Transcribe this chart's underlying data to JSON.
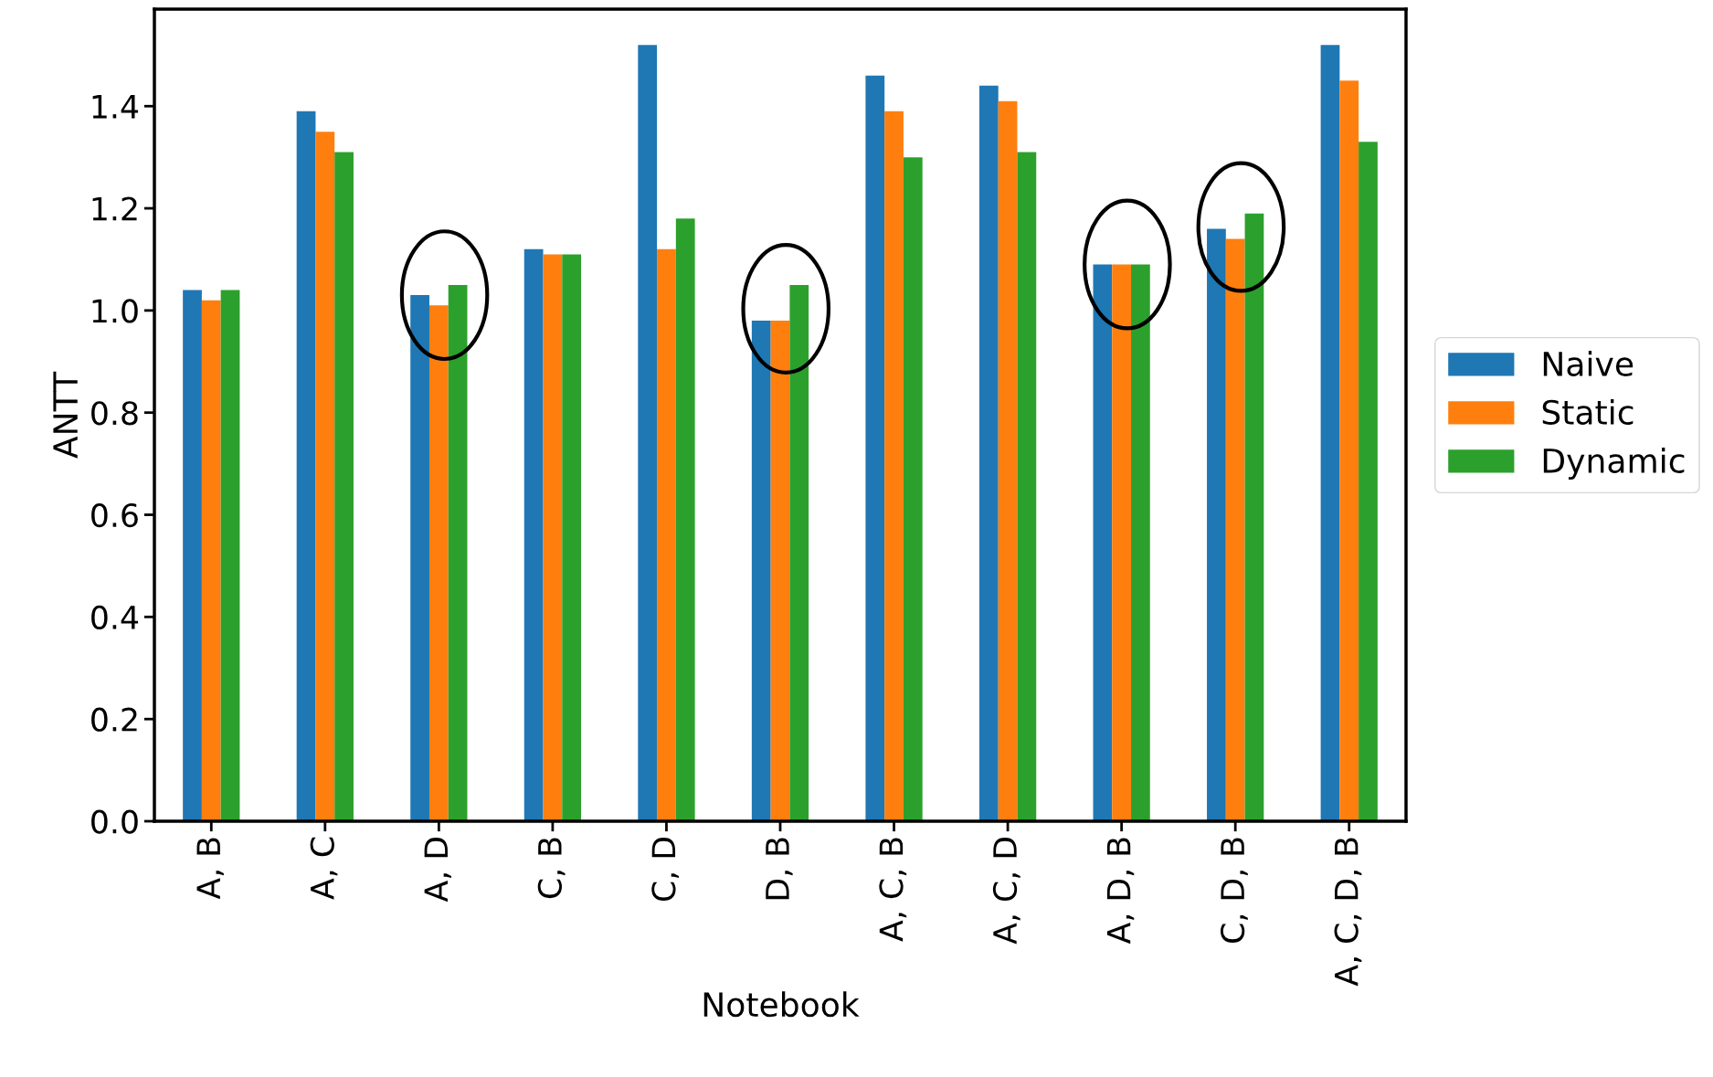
{
  "chart_data": {
    "type": "bar",
    "xlabel": "Notebook",
    "ylabel": "ANTT",
    "categories": [
      "A, B",
      "A, C",
      "A, D",
      "C, B",
      "C, D",
      "D, B",
      "A, C, B",
      "A, C, D",
      "A, D, B",
      "C, D, B",
      "A, C, D, B"
    ],
    "series": [
      {
        "name": "Naive",
        "color": "#1f77b4",
        "values": [
          1.04,
          1.39,
          1.03,
          1.12,
          1.52,
          0.98,
          1.46,
          1.44,
          1.09,
          1.16,
          1.52
        ]
      },
      {
        "name": "Static",
        "color": "#ff7f0e",
        "values": [
          1.02,
          1.35,
          1.01,
          1.11,
          1.12,
          0.98,
          1.39,
          1.41,
          1.09,
          1.14,
          1.45
        ]
      },
      {
        "name": "Dynamic",
        "color": "#2ca02c",
        "values": [
          1.04,
          1.31,
          1.05,
          1.11,
          1.18,
          1.05,
          1.3,
          1.31,
          1.09,
          1.19,
          1.33
        ]
      }
    ],
    "ylim": [
      0,
      1.59
    ],
    "yticks": [
      {
        "value": 0,
        "label": "0.0"
      },
      0.2,
      0.4,
      0.6,
      0.8,
      {
        "value": 1,
        "label": "1.0"
      },
      1.2,
      1.4
    ],
    "grid": false,
    "legend": "right"
  }
}
